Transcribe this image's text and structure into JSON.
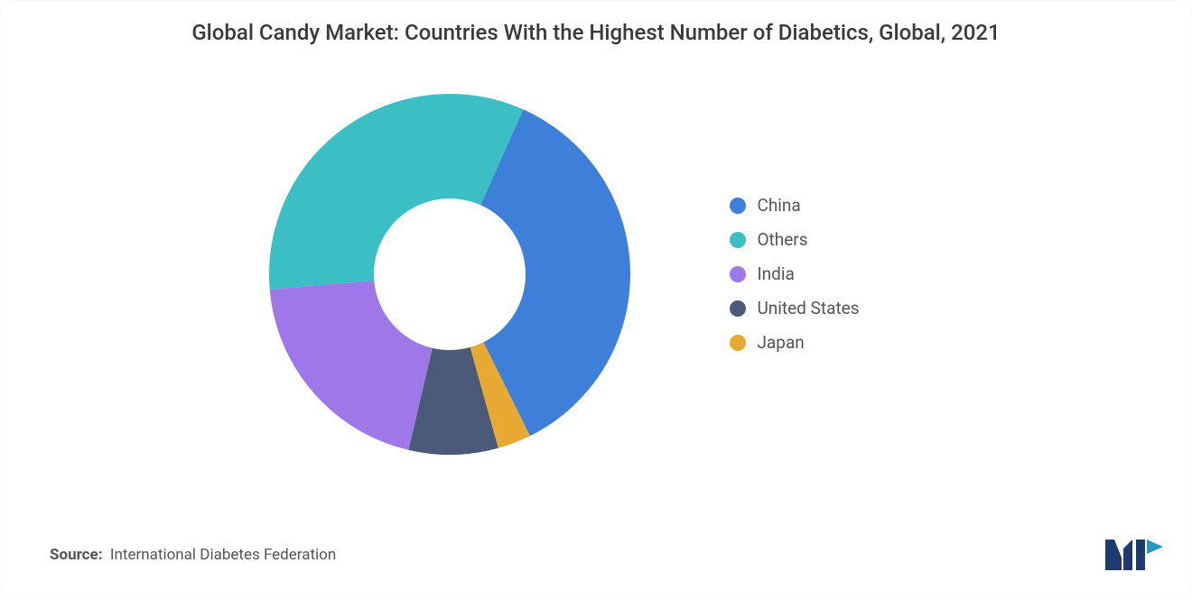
{
  "chart": {
    "type": "donut",
    "title": "Global Candy Market: Countries With the Highest Number of Diabetics, Global, 2021",
    "title_fontsize": 24,
    "title_color": "#3a3a3a",
    "background_color": "#ffffff",
    "inner_radius_ratio": 0.42,
    "outer_radius": 200,
    "slices": [
      {
        "label": "China",
        "value": 36,
        "color": "#3d7fd9"
      },
      {
        "label": "Japan",
        "value": 3,
        "color": "#e8a933"
      },
      {
        "label": "United States",
        "value": 8,
        "color": "#4a5a78"
      },
      {
        "label": "India",
        "value": 20,
        "color": "#9e78e8"
      },
      {
        "label": "Others",
        "value": 33,
        "color": "#3bbfc4"
      }
    ],
    "start_angle_deg": -66
  },
  "legend": {
    "items": [
      {
        "label": "China",
        "color": "#3d7fd9"
      },
      {
        "label": "Others",
        "color": "#3bbfc4"
      },
      {
        "label": "India",
        "color": "#9e78e8"
      },
      {
        "label": "United States",
        "color": "#4a5a78"
      },
      {
        "label": "Japan",
        "color": "#e8a933"
      }
    ],
    "label_fontsize": 19,
    "label_color": "#555555"
  },
  "source": {
    "prefix": "Source:",
    "text": "International Diabetes Federation",
    "fontsize": 17,
    "color": "#555555"
  },
  "logo": {
    "bar_color": "#1d3b6e",
    "accent_color": "#2596be"
  }
}
